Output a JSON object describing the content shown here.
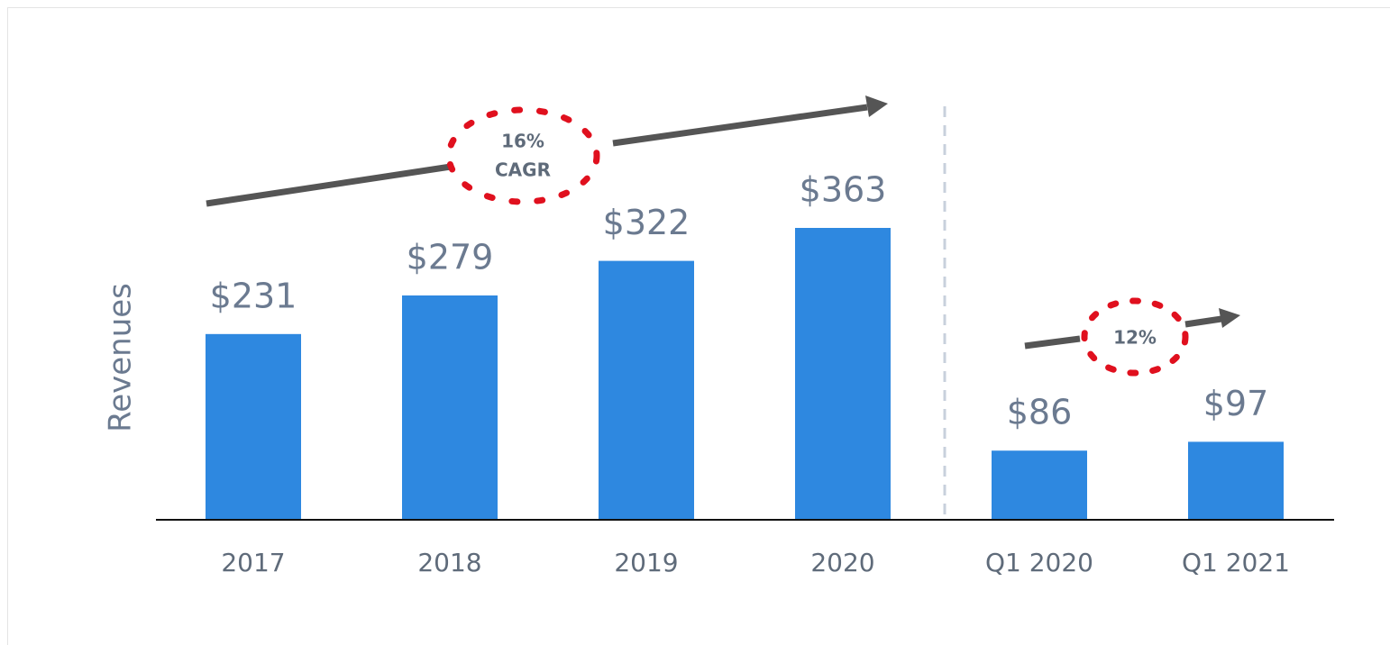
{
  "chart_data": {
    "type": "bar",
    "y_label": "Revenues",
    "categories": [
      "2017",
      "2018",
      "2019",
      "2020",
      "Q1 2020",
      "Q1 2021"
    ],
    "values": [
      231,
      279,
      322,
      363,
      86,
      97
    ],
    "value_labels": [
      "$231",
      "$279",
      "$322",
      "$363",
      "$86",
      "$97"
    ],
    "color": "#2e88e0",
    "annotations": [
      "16%",
      "CAGR",
      "12%"
    ]
  }
}
